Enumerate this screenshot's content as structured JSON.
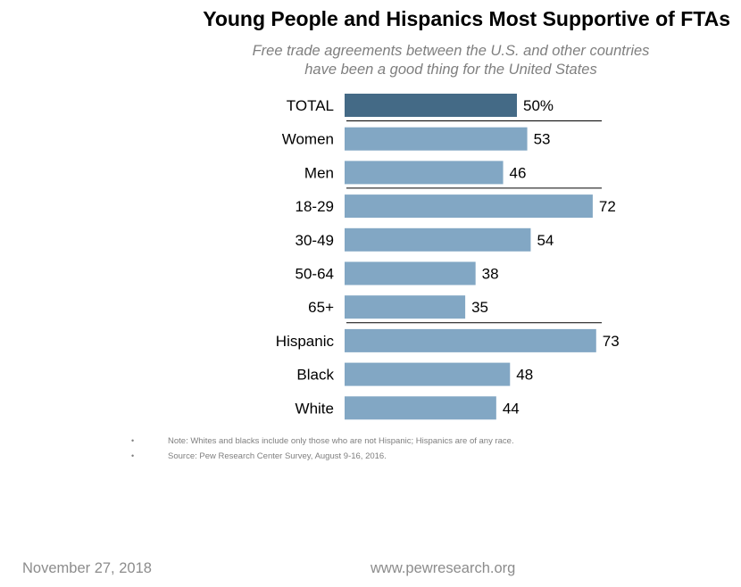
{
  "chart_data": {
    "type": "bar",
    "orientation": "horizontal",
    "title": "Young People and Hispanics Most Supportive of FTAs",
    "subtitle": [
      "Free trade agreements between the U.S. and other countries",
      "have been a good thing for the United States"
    ],
    "categories": [
      "TOTAL",
      "Women",
      "Men",
      "18-29",
      "30-49",
      "50-64",
      "65+",
      "Hispanic",
      "Black",
      "White"
    ],
    "values": [
      50,
      53,
      46,
      72,
      54,
      38,
      35,
      73,
      48,
      44
    ],
    "value_labels": [
      "50%",
      "53",
      "46",
      "72",
      "54",
      "38",
      "35",
      "73",
      "48",
      "44"
    ],
    "groups_separated_after": [
      "TOTAL",
      "Men",
      "65+"
    ],
    "colors": {
      "total": "#446A86",
      "other": "#82A7C4",
      "separator": "#000000"
    },
    "xlim": [
      0,
      100
    ],
    "grid": false,
    "legend": "none"
  },
  "notes": [
    "Note: Whites and blacks include only those who are not Hispanic; Hispanics are of any race.",
    "Source: Pew Research Center Survey, August 9-16, 2016."
  ],
  "footer": {
    "date": "November 27, 2018",
    "url": "www.pewresearch.org"
  }
}
